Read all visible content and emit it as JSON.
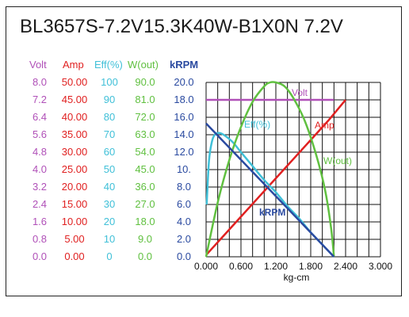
{
  "title": "BL3657S-7.2V15.3K40W-B1X0N   7.2V",
  "colors": {
    "volt": "#b050b8",
    "amp": "#e02020",
    "eff": "#40c0d8",
    "wout": "#60c040",
    "krpm": "#2a4aa0",
    "frame": "#222222"
  },
  "columns": [
    {
      "key": "volt",
      "label": "Volt",
      "values": [
        "8.0",
        "7.2",
        "6.4",
        "5.6",
        "4.8",
        "4.0",
        "3.2",
        "2.4",
        "1.6",
        "0.8",
        "0.0"
      ]
    },
    {
      "key": "amp",
      "label": "Amp",
      "values": [
        "50.00",
        "45.00",
        "40.00",
        "35.00",
        "30.00",
        "25.00",
        "20.00",
        "15.00",
        "10.00",
        "5.00",
        "0.00"
      ]
    },
    {
      "key": "eff",
      "label": "Eff(%)",
      "values": [
        "100",
        "90",
        "80",
        "70",
        "60",
        "50",
        "40",
        "30",
        "20",
        "10",
        "0"
      ]
    },
    {
      "key": "wout",
      "label": "W(out)",
      "values": [
        "90.0",
        "81.0",
        "72.0",
        "63.0",
        "54.0",
        "45.0",
        "36.0",
        "27.0",
        "18.0",
        "9.0",
        "0.0"
      ]
    },
    {
      "key": "krpm",
      "label": "kRPM",
      "values": [
        "20.0",
        "18.0",
        "16.0",
        "14.0",
        "12.0",
        "10.",
        "8.0",
        "6.0",
        "4.0",
        "2.0",
        "0.0"
      ]
    }
  ],
  "chart_data": {
    "type": "line",
    "xlabel": "kg-cm",
    "xlim": [
      0,
      3.0
    ],
    "ylim_krpm": [
      0,
      20
    ],
    "x_ticks": [
      "0.000",
      "0.600",
      "1.200",
      "1.800",
      "2.400",
      "3.000"
    ],
    "grid": true,
    "series": [
      {
        "name": "Volt",
        "key": "volt",
        "scale": "volt",
        "points": [
          [
            0,
            7.2
          ],
          [
            2.2,
            7.2
          ]
        ]
      },
      {
        "name": "Amp",
        "key": "amp",
        "scale": "amp",
        "points": [
          [
            0,
            0.5
          ],
          [
            0.3,
            6.0
          ],
          [
            0.6,
            11.5
          ],
          [
            0.9,
            17.0
          ],
          [
            1.2,
            22.5
          ],
          [
            1.5,
            28.0
          ],
          [
            1.8,
            33.5
          ],
          [
            2.1,
            39.0
          ],
          [
            2.4,
            45.0
          ]
        ]
      },
      {
        "name": "Eff(%)",
        "key": "eff",
        "scale": "eff",
        "points": [
          [
            0.01,
            30
          ],
          [
            0.05,
            55
          ],
          [
            0.1,
            66
          ],
          [
            0.15,
            70
          ],
          [
            0.22,
            71
          ],
          [
            0.3,
            70
          ],
          [
            0.45,
            66
          ],
          [
            0.6,
            60
          ],
          [
            0.8,
            52
          ],
          [
            1.0,
            44
          ],
          [
            1.2,
            37
          ],
          [
            1.4,
            29
          ],
          [
            1.6,
            22
          ],
          [
            1.8,
            14
          ],
          [
            2.0,
            7
          ],
          [
            2.2,
            0
          ]
        ]
      },
      {
        "name": "W(out)",
        "key": "wout",
        "scale": "wout",
        "points": [
          [
            0,
            0
          ],
          [
            0.2,
            28
          ],
          [
            0.4,
            50
          ],
          [
            0.6,
            67
          ],
          [
            0.8,
            80
          ],
          [
            1.0,
            88
          ],
          [
            1.1,
            90
          ],
          [
            1.2,
            90
          ],
          [
            1.35,
            88
          ],
          [
            1.5,
            82
          ],
          [
            1.7,
            70
          ],
          [
            1.9,
            52
          ],
          [
            2.05,
            34
          ],
          [
            2.15,
            15
          ],
          [
            2.2,
            0
          ]
        ]
      },
      {
        "name": "kRPM",
        "key": "krpm",
        "scale": "krpm",
        "points": [
          [
            0,
            15.3
          ],
          [
            2.2,
            0
          ]
        ]
      }
    ],
    "annotations": [
      {
        "text": "Volt",
        "key": "volt"
      },
      {
        "text": "Amp",
        "key": "amp"
      },
      {
        "text": "Eff(%)",
        "key": "eff"
      },
      {
        "text": "W(out)",
        "key": "wout"
      },
      {
        "text": "kRPM",
        "key": "krpm"
      }
    ]
  }
}
